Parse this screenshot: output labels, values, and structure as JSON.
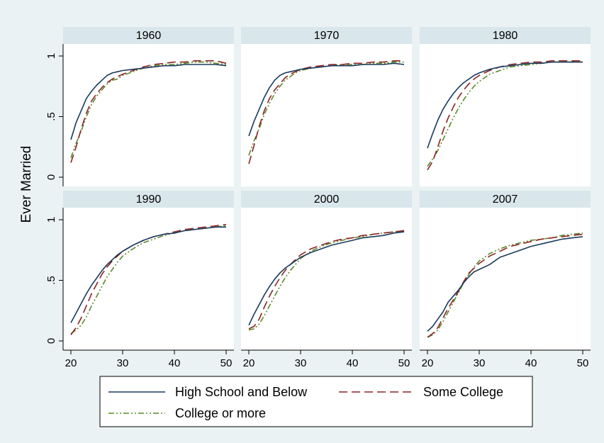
{
  "chart_data": {
    "type": "line",
    "ylabel": "Ever Married",
    "x_ticks": [
      20,
      30,
      40,
      50
    ],
    "y_ticks": [
      {
        "value": 0,
        "label": "0"
      },
      {
        "value": 0.5,
        "label": ".5"
      },
      {
        "value": 1,
        "label": "1"
      }
    ],
    "xlim": [
      20,
      50
    ],
    "ylim": [
      0,
      1
    ],
    "grid": false,
    "legend_position": "bottom",
    "series_styles": [
      {
        "name": "High School and Below",
        "color": "#1a3a5c",
        "dash": ""
      },
      {
        "name": "Some College",
        "color": "#8b2323",
        "dash": "12,6"
      },
      {
        "name": "College or more",
        "color": "#5a8a2a",
        "dash": "8,3,2,3,2,3"
      }
    ],
    "panels": [
      {
        "title": "1960",
        "x": [
          20,
          21,
          22,
          23,
          24,
          25,
          26,
          27,
          28,
          29,
          30,
          32,
          34,
          36,
          38,
          40,
          42,
          44,
          46,
          48,
          50
        ],
        "series": [
          {
            "name": "High School and Below",
            "values": [
              0.31,
              0.45,
              0.55,
              0.65,
              0.71,
              0.76,
              0.8,
              0.84,
              0.86,
              0.87,
              0.88,
              0.89,
              0.9,
              0.91,
              0.92,
              0.92,
              0.93,
              0.93,
              0.93,
              0.93,
              0.92
            ]
          },
          {
            "name": "Some College",
            "values": [
              0.12,
              0.25,
              0.4,
              0.53,
              0.63,
              0.69,
              0.74,
              0.78,
              0.81,
              0.83,
              0.85,
              0.88,
              0.91,
              0.93,
              0.94,
              0.95,
              0.95,
              0.96,
              0.96,
              0.96,
              0.94
            ]
          },
          {
            "name": "College or more",
            "values": [
              0.16,
              0.28,
              0.38,
              0.5,
              0.6,
              0.67,
              0.72,
              0.77,
              0.8,
              0.81,
              0.84,
              0.87,
              0.9,
              0.92,
              0.93,
              0.93,
              0.94,
              0.95,
              0.95,
              0.94,
              0.93
            ]
          }
        ]
      },
      {
        "title": "1970",
        "x": [
          20,
          21,
          22,
          23,
          24,
          25,
          26,
          27,
          28,
          29,
          30,
          32,
          34,
          36,
          38,
          40,
          42,
          44,
          46,
          48,
          50
        ],
        "series": [
          {
            "name": "High School and Below",
            "values": [
              0.34,
              0.46,
              0.56,
              0.66,
              0.74,
              0.8,
              0.84,
              0.86,
              0.87,
              0.88,
              0.89,
              0.9,
              0.91,
              0.92,
              0.92,
              0.92,
              0.93,
              0.93,
              0.93,
              0.94,
              0.93
            ]
          },
          {
            "name": "Some College",
            "values": [
              0.11,
              0.26,
              0.42,
              0.55,
              0.65,
              0.72,
              0.77,
              0.82,
              0.85,
              0.87,
              0.89,
              0.91,
              0.92,
              0.93,
              0.93,
              0.94,
              0.94,
              0.95,
              0.95,
              0.96,
              0.96
            ]
          },
          {
            "name": "College or more",
            "values": [
              0.18,
              0.3,
              0.4,
              0.52,
              0.61,
              0.69,
              0.75,
              0.8,
              0.83,
              0.86,
              0.88,
              0.9,
              0.91,
              0.92,
              0.93,
              0.93,
              0.93,
              0.94,
              0.94,
              0.95,
              0.95
            ]
          }
        ]
      },
      {
        "title": "1980",
        "x": [
          20,
          21,
          22,
          23,
          24,
          25,
          26,
          27,
          28,
          29,
          30,
          32,
          34,
          36,
          38,
          40,
          42,
          44,
          46,
          48,
          50
        ],
        "series": [
          {
            "name": "High School and Below",
            "values": [
              0.24,
              0.36,
              0.47,
              0.56,
              0.63,
              0.69,
              0.74,
              0.78,
              0.81,
              0.84,
              0.86,
              0.89,
              0.91,
              0.92,
              0.93,
              0.94,
              0.94,
              0.95,
              0.95,
              0.95,
              0.95
            ]
          },
          {
            "name": "Some College",
            "values": [
              0.06,
              0.13,
              0.25,
              0.38,
              0.49,
              0.58,
              0.66,
              0.72,
              0.77,
              0.81,
              0.84,
              0.88,
              0.91,
              0.93,
              0.94,
              0.95,
              0.95,
              0.96,
              0.96,
              0.96,
              0.96
            ]
          },
          {
            "name": "College or more",
            "values": [
              0.09,
              0.15,
              0.22,
              0.31,
              0.4,
              0.49,
              0.57,
              0.64,
              0.7,
              0.75,
              0.79,
              0.85,
              0.88,
              0.91,
              0.92,
              0.93,
              0.94,
              0.95,
              0.95,
              0.95,
              0.95
            ]
          }
        ]
      },
      {
        "title": "1990",
        "x": [
          20,
          21,
          22,
          23,
          24,
          25,
          26,
          27,
          28,
          29,
          30,
          32,
          34,
          36,
          38,
          40,
          42,
          44,
          46,
          48,
          50
        ],
        "series": [
          {
            "name": "High School and Below",
            "values": [
              0.15,
              0.23,
              0.31,
              0.39,
              0.46,
              0.52,
              0.58,
              0.63,
              0.67,
              0.71,
              0.74,
              0.79,
              0.83,
              0.86,
              0.88,
              0.89,
              0.91,
              0.92,
              0.93,
              0.94,
              0.94
            ]
          },
          {
            "name": "Some College",
            "values": [
              0.05,
              0.11,
              0.19,
              0.29,
              0.39,
              0.47,
              0.55,
              0.61,
              0.66,
              0.7,
              0.74,
              0.79,
              0.83,
              0.86,
              0.88,
              0.9,
              0.92,
              0.93,
              0.94,
              0.95,
              0.96
            ]
          },
          {
            "name": "College or more",
            "values": [
              0.06,
              0.09,
              0.13,
              0.2,
              0.29,
              0.37,
              0.45,
              0.53,
              0.59,
              0.65,
              0.7,
              0.76,
              0.81,
              0.84,
              0.87,
              0.89,
              0.91,
              0.92,
              0.93,
              0.94,
              0.95
            ]
          }
        ]
      },
      {
        "title": "2000",
        "x": [
          20,
          21,
          22,
          23,
          24,
          25,
          26,
          27,
          28,
          29,
          30,
          32,
          34,
          36,
          38,
          40,
          42,
          44,
          46,
          48,
          50
        ],
        "series": [
          {
            "name": "High School and Below",
            "values": [
              0.13,
              0.22,
              0.3,
              0.38,
              0.45,
              0.51,
              0.56,
              0.6,
              0.63,
              0.66,
              0.69,
              0.73,
              0.76,
              0.79,
              0.81,
              0.83,
              0.85,
              0.86,
              0.87,
              0.89,
              0.9
            ]
          },
          {
            "name": "Some College",
            "values": [
              0.1,
              0.12,
              0.18,
              0.28,
              0.37,
              0.45,
              0.52,
              0.58,
              0.63,
              0.67,
              0.71,
              0.76,
              0.79,
              0.82,
              0.84,
              0.85,
              0.87,
              0.88,
              0.89,
              0.9,
              0.91
            ]
          },
          {
            "name": "College or more",
            "values": [
              0.09,
              0.1,
              0.14,
              0.21,
              0.29,
              0.37,
              0.45,
              0.52,
              0.58,
              0.63,
              0.68,
              0.74,
              0.78,
              0.81,
              0.83,
              0.85,
              0.86,
              0.88,
              0.89,
              0.9,
              0.91
            ]
          }
        ]
      },
      {
        "title": "2007",
        "x": [
          20,
          21,
          22,
          23,
          24,
          25,
          26,
          27,
          28,
          29,
          30,
          32,
          34,
          36,
          38,
          40,
          42,
          44,
          46,
          48,
          50
        ],
        "series": [
          {
            "name": "High School and Below",
            "values": [
              0.08,
              0.12,
              0.18,
              0.24,
              0.32,
              0.37,
              0.42,
              0.48,
              0.53,
              0.57,
              0.59,
              0.63,
              0.69,
              0.72,
              0.75,
              0.78,
              0.8,
              0.82,
              0.84,
              0.85,
              0.86
            ]
          },
          {
            "name": "Some College",
            "values": [
              0.03,
              0.06,
              0.11,
              0.19,
              0.27,
              0.34,
              0.41,
              0.49,
              0.56,
              0.6,
              0.64,
              0.7,
              0.74,
              0.78,
              0.8,
              0.82,
              0.84,
              0.85,
              0.86,
              0.87,
              0.88
            ]
          },
          {
            "name": "College or more",
            "values": [
              0.03,
              0.05,
              0.09,
              0.16,
              0.24,
              0.32,
              0.4,
              0.48,
              0.55,
              0.61,
              0.66,
              0.72,
              0.76,
              0.79,
              0.81,
              0.83,
              0.84,
              0.85,
              0.87,
              0.88,
              0.89
            ]
          }
        ]
      }
    ]
  },
  "legend": {
    "items": [
      {
        "label": "High School and Below"
      },
      {
        "label": "Some College"
      },
      {
        "label": "College or more"
      }
    ]
  }
}
